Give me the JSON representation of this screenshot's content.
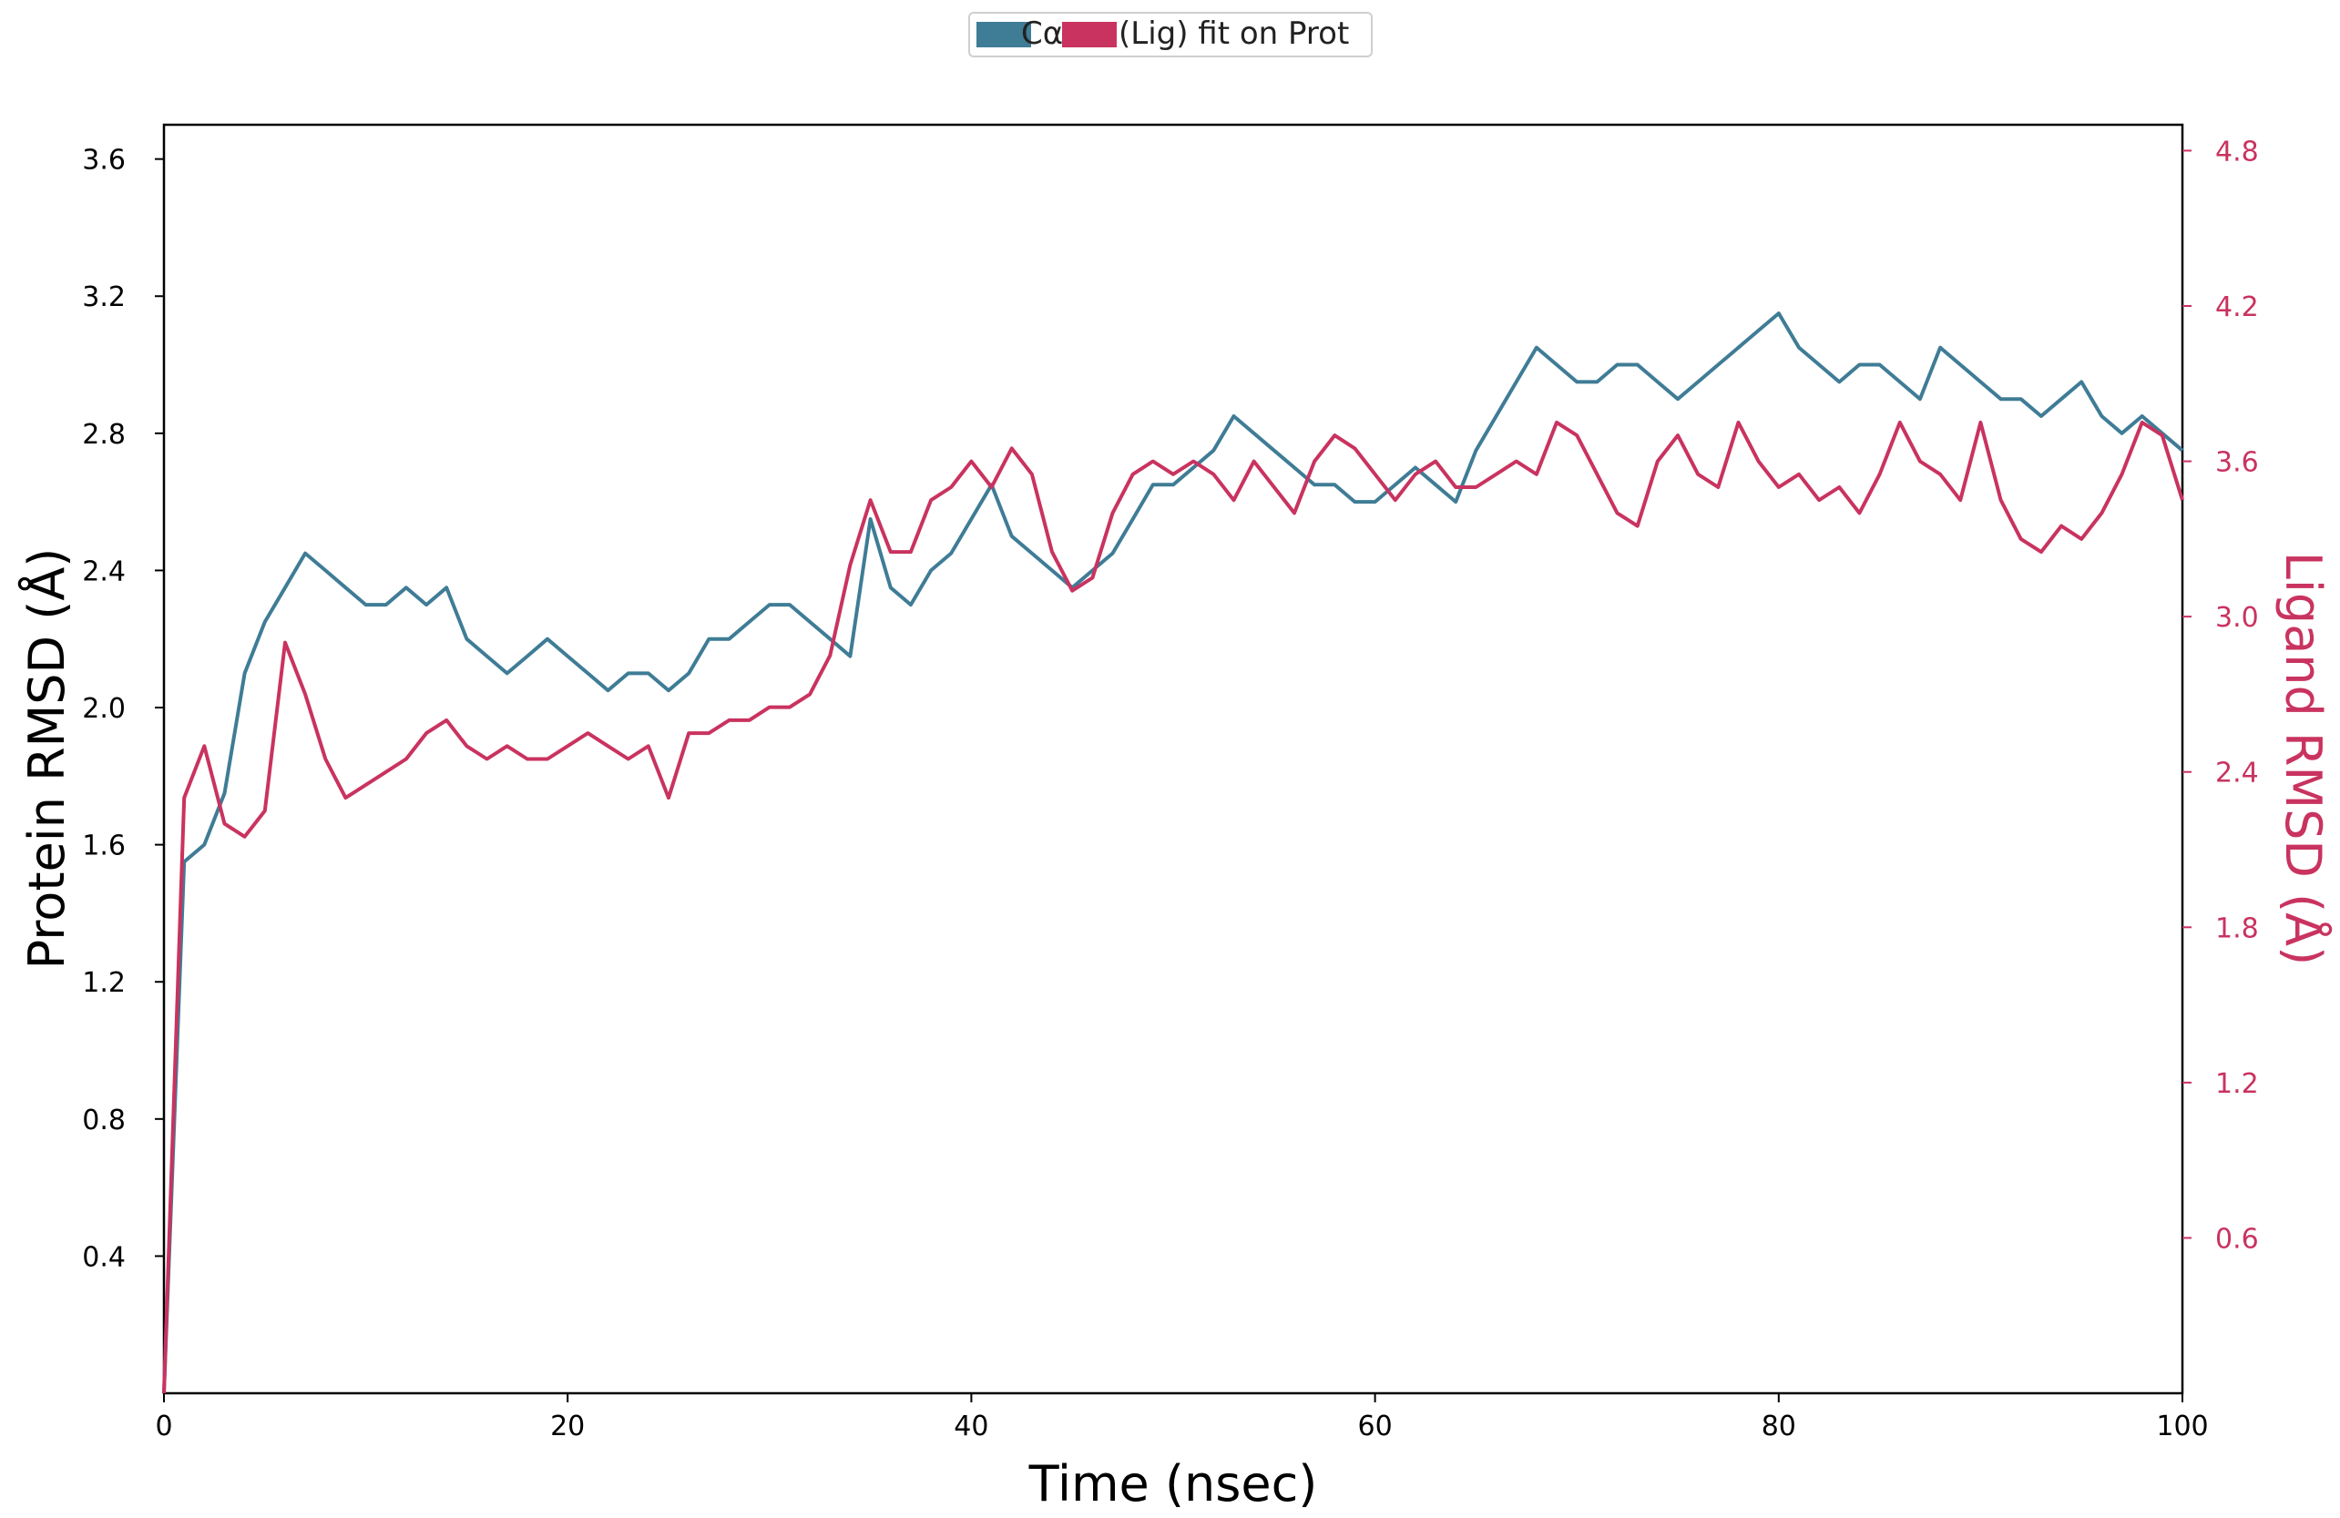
{
  "chart_data": {
    "type": "line",
    "title": "",
    "xlabel": "Time (nsec)",
    "ylabel_left": "Protein RMSD (Å)",
    "ylabel_right": "Ligand RMSD (Å)",
    "xlim": [
      0,
      100
    ],
    "ylim_left": [
      0.0,
      3.7
    ],
    "ylim_right": [
      0.0,
      4.9
    ],
    "xticks": [
      "0",
      "20",
      "40",
      "60",
      "80",
      "100"
    ],
    "yticks_left": [
      "0.4",
      "0.8",
      "1.2",
      "1.6",
      "2.0",
      "2.4",
      "2.8",
      "3.2",
      "3.6"
    ],
    "yticks_right": [
      "0.6",
      "1.2",
      "1.8",
      "2.4",
      "3.0",
      "3.6",
      "4.2",
      "4.8"
    ],
    "grid": false,
    "legend": {
      "placement": "top-center",
      "entries": [
        "Cα",
        "(Lig) fit on Prot"
      ]
    },
    "colors": {
      "protein": "#3f7c96",
      "ligand": "#c9335f"
    },
    "series": [
      {
        "name": "Cα",
        "axis": "left",
        "x": [
          0,
          1,
          2,
          3,
          4,
          5,
          6,
          7,
          8,
          9,
          10,
          11,
          12,
          13,
          14,
          15,
          16,
          17,
          18,
          19,
          20,
          21,
          22,
          23,
          24,
          25,
          26,
          27,
          28,
          29,
          30,
          31,
          32,
          33,
          34,
          35,
          36,
          37,
          38,
          39,
          40,
          41,
          42,
          43,
          44,
          45,
          46,
          47,
          48,
          49,
          50,
          51,
          52,
          53,
          54,
          55,
          56,
          57,
          58,
          59,
          60,
          61,
          62,
          63,
          64,
          65,
          66,
          67,
          68,
          69,
          70,
          71,
          72,
          73,
          74,
          75,
          76,
          77,
          78,
          79,
          80,
          81,
          82,
          83,
          84,
          85,
          86,
          87,
          88,
          89,
          90,
          91,
          92,
          93,
          94,
          95,
          96,
          97,
          98,
          99,
          100
        ],
        "y": [
          0.0,
          1.55,
          1.6,
          1.75,
          2.1,
          2.25,
          2.35,
          2.45,
          2.4,
          2.35,
          2.3,
          2.3,
          2.35,
          2.3,
          2.35,
          2.2,
          2.15,
          2.1,
          2.15,
          2.2,
          2.15,
          2.1,
          2.05,
          2.1,
          2.1,
          2.05,
          2.1,
          2.2,
          2.2,
          2.25,
          2.3,
          2.3,
          2.25,
          2.2,
          2.15,
          2.55,
          2.35,
          2.3,
          2.4,
          2.45,
          2.55,
          2.65,
          2.5,
          2.45,
          2.4,
          2.35,
          2.4,
          2.45,
          2.55,
          2.65,
          2.65,
          2.7,
          2.75,
          2.85,
          2.8,
          2.75,
          2.7,
          2.65,
          2.65,
          2.6,
          2.6,
          2.65,
          2.7,
          2.65,
          2.6,
          2.75,
          2.85,
          2.95,
          3.05,
          3.0,
          2.95,
          2.95,
          3.0,
          3.0,
          2.95,
          2.9,
          2.95,
          3.0,
          3.05,
          3.1,
          3.15,
          3.05,
          3.0,
          2.95,
          3.0,
          3.0,
          2.95,
          2.9,
          3.05,
          3.0,
          2.95,
          2.9,
          2.9,
          2.85,
          2.9,
          2.95,
          2.85,
          2.8,
          2.85,
          2.8,
          2.75
        ]
      },
      {
        "name": "(Lig) fit on Prot",
        "axis": "right",
        "x": [
          0,
          1,
          2,
          3,
          4,
          5,
          6,
          7,
          8,
          9,
          10,
          11,
          12,
          13,
          14,
          15,
          16,
          17,
          18,
          19,
          20,
          21,
          22,
          23,
          24,
          25,
          26,
          27,
          28,
          29,
          30,
          31,
          32,
          33,
          34,
          35,
          36,
          37,
          38,
          39,
          40,
          41,
          42,
          43,
          44,
          45,
          46,
          47,
          48,
          49,
          50,
          51,
          52,
          53,
          54,
          55,
          56,
          57,
          58,
          59,
          60,
          61,
          62,
          63,
          64,
          65,
          66,
          67,
          68,
          69,
          70,
          71,
          72,
          73,
          74,
          75,
          76,
          77,
          78,
          79,
          80,
          81,
          82,
          83,
          84,
          85,
          86,
          87,
          88,
          89,
          90,
          91,
          92,
          93,
          94,
          95,
          96,
          97,
          98,
          99,
          100
        ],
        "y": [
          0.0,
          2.3,
          2.5,
          2.2,
          2.15,
          2.25,
          2.9,
          2.7,
          2.45,
          2.3,
          2.35,
          2.4,
          2.45,
          2.55,
          2.6,
          2.5,
          2.45,
          2.5,
          2.45,
          2.45,
          2.5,
          2.55,
          2.5,
          2.45,
          2.5,
          2.3,
          2.55,
          2.55,
          2.6,
          2.6,
          2.65,
          2.65,
          2.7,
          2.85,
          3.2,
          3.45,
          3.25,
          3.25,
          3.45,
          3.5,
          3.6,
          3.5,
          3.65,
          3.55,
          3.25,
          3.1,
          3.15,
          3.4,
          3.55,
          3.6,
          3.55,
          3.6,
          3.55,
          3.45,
          3.6,
          3.5,
          3.4,
          3.6,
          3.7,
          3.65,
          3.55,
          3.45,
          3.55,
          3.6,
          3.5,
          3.5,
          3.55,
          3.6,
          3.55,
          3.75,
          3.7,
          3.55,
          3.4,
          3.35,
          3.6,
          3.7,
          3.55,
          3.5,
          3.75,
          3.6,
          3.5,
          3.55,
          3.45,
          3.5,
          3.4,
          3.55,
          3.75,
          3.6,
          3.55,
          3.45,
          3.75,
          3.45,
          3.3,
          3.25,
          3.35,
          3.3,
          3.4,
          3.55,
          3.75,
          3.7,
          3.45
        ]
      }
    ]
  }
}
